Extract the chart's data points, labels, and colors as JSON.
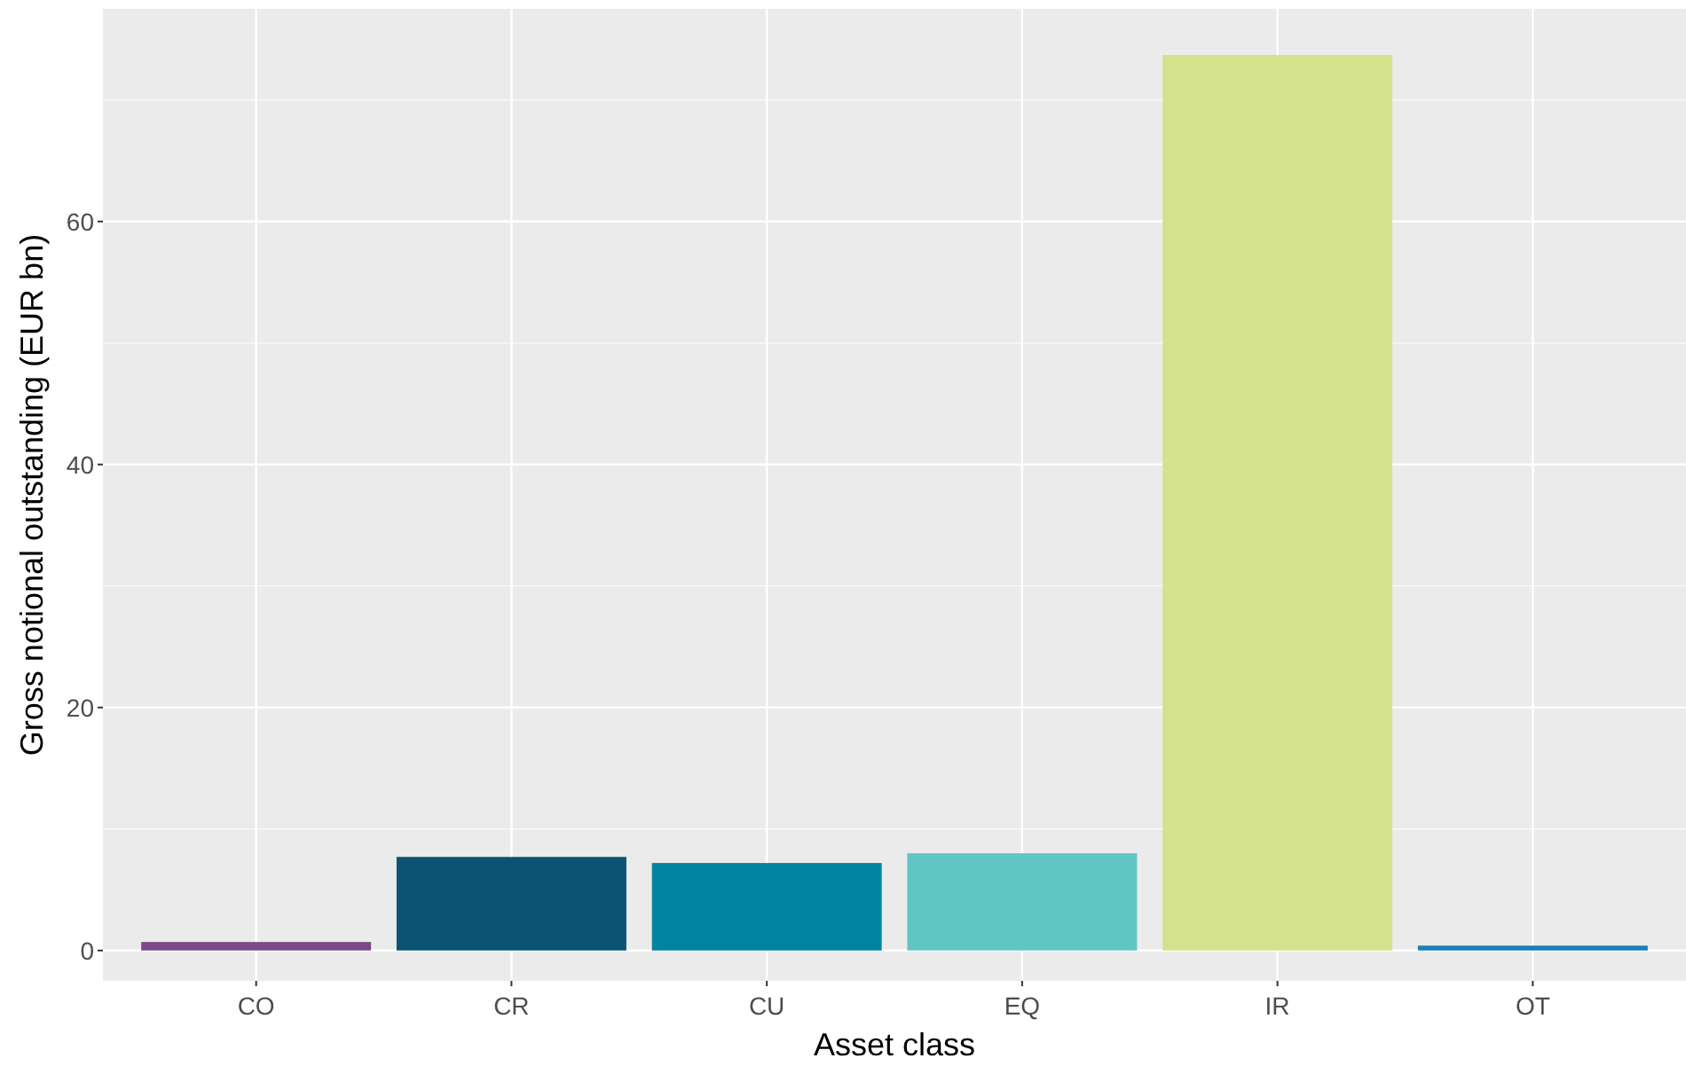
{
  "chart_data": {
    "type": "bar",
    "xlabel": "Asset class",
    "ylabel": "Gross notional outstanding (EUR bn)",
    "categories": [
      "CO",
      "CR",
      "CU",
      "EQ",
      "IR",
      "OT"
    ],
    "values": [
      0.7,
      7.7,
      7.2,
      8.0,
      73.7,
      0.4
    ],
    "colors": [
      "#7b4a86",
      "#0b5372",
      "#0083a1",
      "#5fc6c4",
      "#d4e28c",
      "#1a7fb8"
    ],
    "ylim": [
      -2.5,
      77.5
    ],
    "yticks": [
      0,
      20,
      40,
      60
    ],
    "grid": true
  }
}
